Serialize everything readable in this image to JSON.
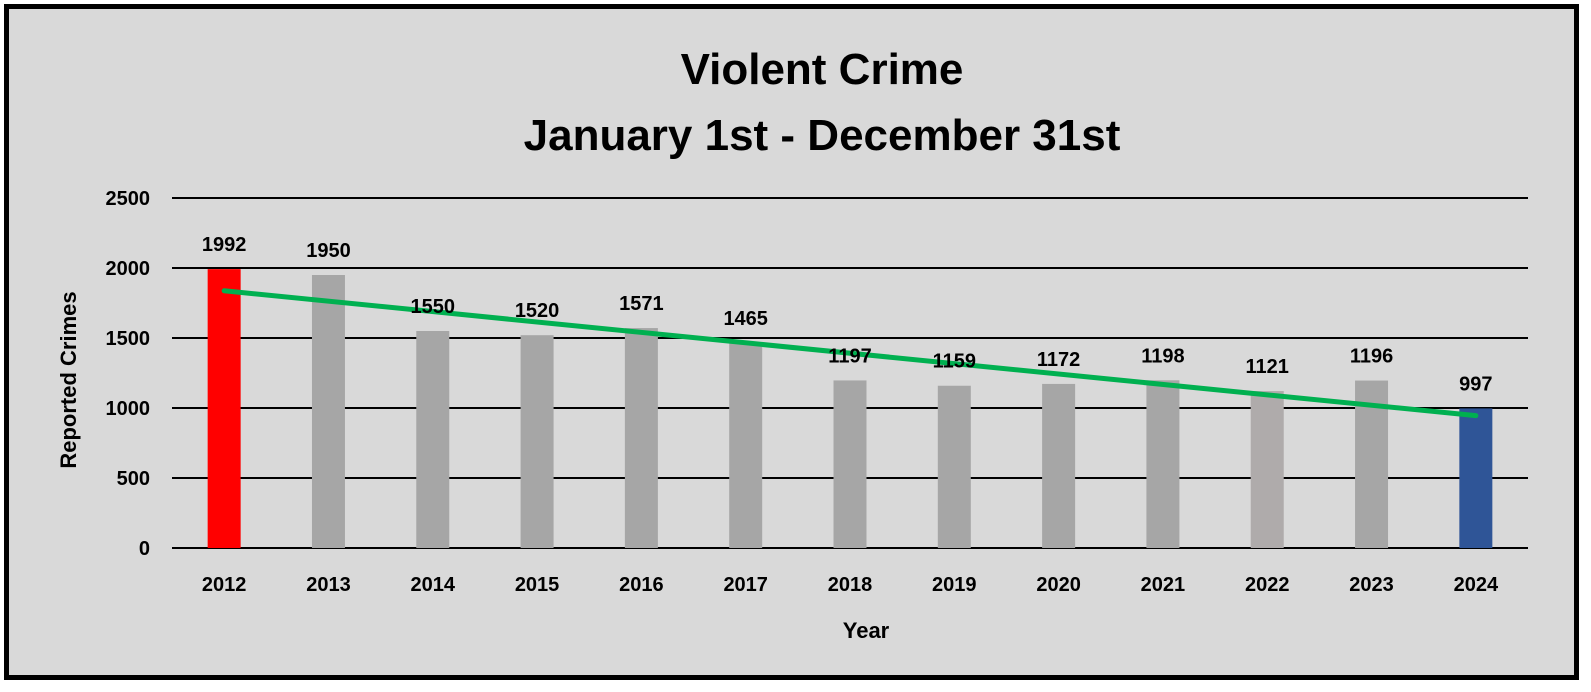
{
  "chart_data": {
    "type": "bar",
    "title": [
      "Violent Crime",
      "January 1st - December 31st"
    ],
    "xlabel": "Year",
    "ylabel": "Reported Crimes",
    "categories": [
      "2012",
      "2013",
      "2014",
      "2015",
      "2016",
      "2017",
      "2018",
      "2019",
      "2020",
      "2021",
      "2022",
      "2023",
      "2024"
    ],
    "values": [
      1992,
      1950,
      1550,
      1520,
      1571,
      1465,
      1197,
      1159,
      1172,
      1198,
      1121,
      1196,
      997
    ],
    "bar_colors": [
      "#ff0000",
      "#a6a6a6",
      "#a6a6a6",
      "#a6a6a6",
      "#a6a6a6",
      "#a6a6a6",
      "#a6a6a6",
      "#a6a6a6",
      "#a6a6a6",
      "#a6a6a6",
      "#afabab",
      "#a6a6a6",
      "#2f5597"
    ],
    "ylim": [
      0,
      2500
    ],
    "yticks": [
      0,
      500,
      1000,
      1500,
      2000,
      2500
    ],
    "grid": true,
    "trendline": {
      "type": "linear",
      "color": "#00b050"
    },
    "background_color": "#d9d9d9"
  }
}
